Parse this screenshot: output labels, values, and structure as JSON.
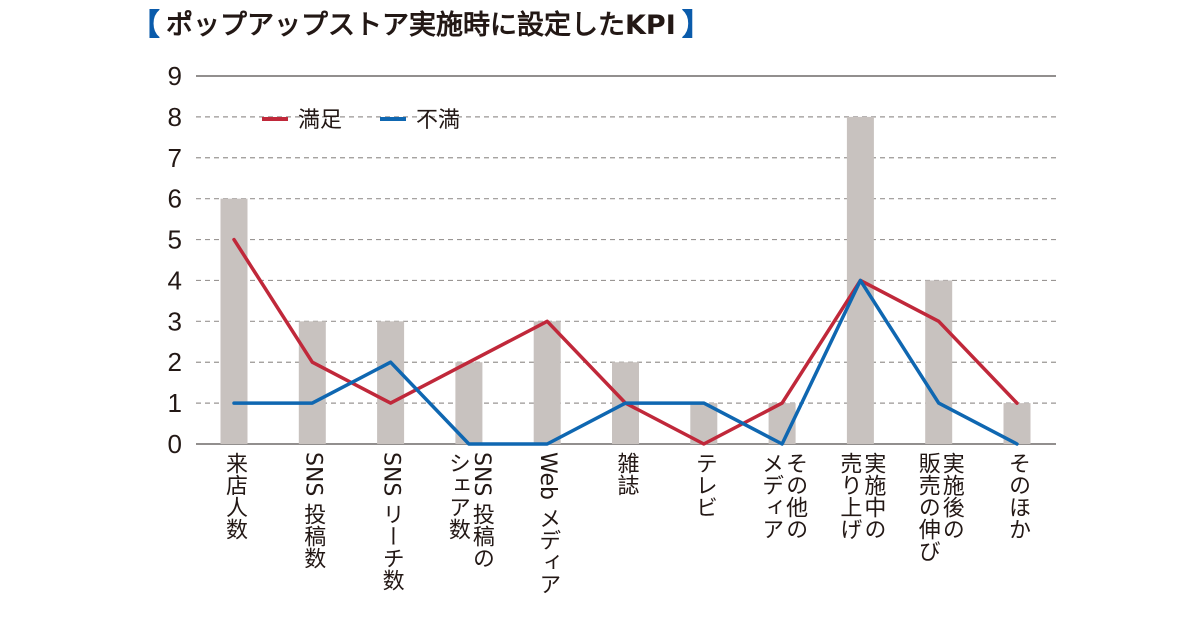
{
  "title": "ポップアップストア実施時に設定したKPI",
  "bracket_open": "【",
  "bracket_close": "】",
  "chart_data": {
    "type": "bar",
    "title": "ポップアップストア実施時に設定したKPI",
    "categories": [
      "来店人数",
      "SNS 投稿数",
      "SNS リーチ数",
      "SNS 投稿の\nシェア数",
      "Web メディア",
      "雑誌",
      "テレビ",
      "その他の\nメディア",
      "実施中の\n売り上げ",
      "実施後の\n販売の伸び",
      "そのほか"
    ],
    "values": [
      6,
      3,
      3,
      2,
      3,
      2,
      1,
      1,
      8,
      4,
      1
    ],
    "series": [
      {
        "name": "満足",
        "type": "line",
        "color": "#c0283a",
        "values": [
          5,
          2,
          1,
          2,
          3,
          1,
          0,
          1,
          4,
          3,
          1
        ]
      },
      {
        "name": "不満",
        "type": "line",
        "color": "#0f67b1",
        "values": [
          1,
          1,
          2,
          0,
          0,
          1,
          1,
          0,
          4,
          1,
          0
        ]
      }
    ],
    "bar_color": "#c8c2bf",
    "ylim": [
      0,
      9
    ],
    "yticks": [
      "0",
      "1",
      "2",
      "3",
      "4",
      "5",
      "6",
      "7",
      "8",
      "9"
    ],
    "grid": true,
    "legend_position": "top-left"
  }
}
